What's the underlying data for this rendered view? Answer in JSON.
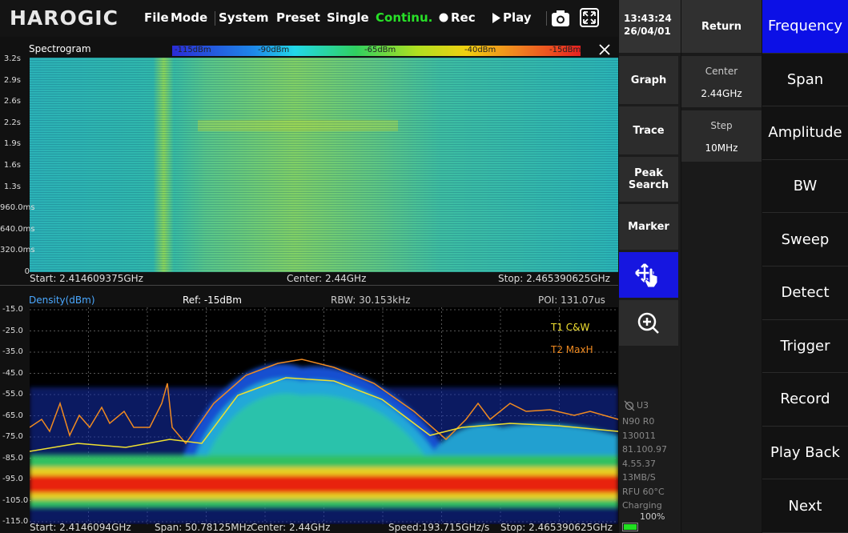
{
  "top_bar": {
    "logo": "HAROGIC",
    "menu": [
      "File",
      "Mode",
      "System",
      "Preset",
      "Single",
      "Continu.",
      "Rec",
      "Play"
    ]
  },
  "spectrogram": {
    "title": "Spectrogram",
    "colorbar_labels": [
      "-115dBm",
      "-90dBm",
      "-65dBm",
      "-40dBm",
      "-15dBm"
    ],
    "y_labels": [
      "3.2s",
      "2.9s",
      "2.6s",
      "2.2s",
      "1.9s",
      "1.6s",
      "1.3s",
      "960.0ms",
      "640.0ms",
      "320.0ms",
      "0"
    ],
    "footer": [
      "Start: 2.414609375GHz",
      "Center: 2.44GHz",
      "Stop: 2.465390625GHz"
    ]
  },
  "density": {
    "title": "Density(dBm)",
    "ref": "Ref: -15dBm",
    "rbw": "RBW: 30.153kHz",
    "poi": "POI: 131.07us",
    "y_labels": [
      "-15.0",
      "-25.0",
      "-35.0",
      "-45.0",
      "-55.0",
      "-65.0",
      "-75.0",
      "-85.0",
      "-95.0",
      "-105.0",
      "-115.0"
    ],
    "legend": [
      "T1 C&W",
      "T2 MaxH"
    ],
    "footer": [
      "Start: 2.4146094GHz",
      "Span: 50.78125MHz",
      "Center: 2.44GHz",
      "Speed:193.715GHz/s",
      "Stop: 2.465390625GHz"
    ]
  },
  "side_panel": {
    "time": "13:43:24",
    "date": "26/04/01",
    "buttons": [
      "Graph",
      "Trace",
      "Peak Search",
      "Marker"
    ],
    "status": [
      "U3",
      "N90 R0",
      "130011",
      "81.100.97",
      "4.55.37",
      "13MB/S",
      "RFU 60°C",
      "Charging",
      "100%"
    ]
  },
  "settings_panel": {
    "return": "Return",
    "items": [
      {
        "label": "Center",
        "value": "2.44GHz"
      },
      {
        "label": "Step",
        "value": "10MHz"
      }
    ]
  },
  "menu_panel": {
    "items": [
      "Frequency",
      "Span",
      "Amplitude",
      "BW",
      "Sweep",
      "Detect",
      "Trigger",
      "Record",
      "Play Back",
      "Next"
    ],
    "active": 0
  }
}
